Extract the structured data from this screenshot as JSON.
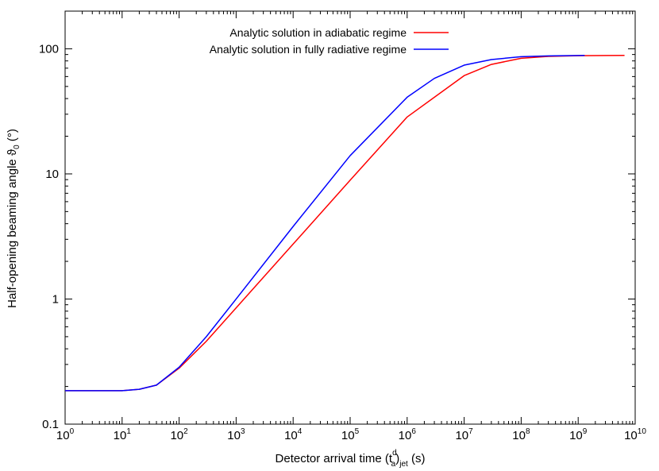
{
  "chart_data": {
    "type": "line",
    "title": "",
    "xlabel": "Detector arrival time (t",
    "xlabel_sup": "d",
    "xlabel_sub": "a",
    "xlabel_tail": ")",
    "xlabel_sub2": "jet",
    "xlabel_end": " (s)",
    "ylabel": "Half-opening beaming angle ϑ",
    "ylabel_sub": "0",
    "ylabel_end": " (°)",
    "x_scale": "log",
    "y_scale": "log",
    "xlim": [
      1,
      10000000000
    ],
    "ylim": [
      0.1,
      200
    ],
    "x_ticks": [
      {
        "base": "10",
        "exp": "0"
      },
      {
        "base": "10",
        "exp": "1"
      },
      {
        "base": "10",
        "exp": "2"
      },
      {
        "base": "10",
        "exp": "3"
      },
      {
        "base": "10",
        "exp": "4"
      },
      {
        "base": "10",
        "exp": "5"
      },
      {
        "base": "10",
        "exp": "6"
      },
      {
        "base": "10",
        "exp": "7"
      },
      {
        "base": "10",
        "exp": "8"
      },
      {
        "base": "10",
        "exp": "9"
      },
      {
        "base": "10",
        "exp": "10"
      }
    ],
    "y_ticks": [
      "0.1",
      "1",
      "10",
      "100"
    ],
    "grid": false,
    "legend_position": "top",
    "series": [
      {
        "name": "Analytic solution in adiabatic regime",
        "color": "#ff0000",
        "x": [
          1,
          10,
          20,
          40,
          100,
          300,
          1000,
          10000,
          100000,
          1000000,
          10000000,
          30000000,
          100000000,
          300000000,
          1000000000,
          3000000000,
          6500000000
        ],
        "y": [
          0.185,
          0.185,
          0.19,
          0.205,
          0.28,
          0.46,
          0.85,
          2.75,
          8.9,
          28.5,
          61,
          75,
          84,
          87,
          88,
          88.4,
          88.5
        ]
      },
      {
        "name": "Analytic solution in fully radiative regime",
        "color": "#0000ff",
        "x": [
          1,
          10,
          20,
          40,
          100,
          300,
          1000,
          10000,
          100000,
          1000000,
          3000000,
          10000000,
          30000000,
          100000000,
          300000000,
          1000000000,
          1300000000
        ],
        "y": [
          0.185,
          0.185,
          0.19,
          0.205,
          0.285,
          0.5,
          1.0,
          3.8,
          14,
          41,
          58,
          74,
          82,
          86.5,
          87.8,
          88.4,
          88.5
        ]
      }
    ]
  }
}
